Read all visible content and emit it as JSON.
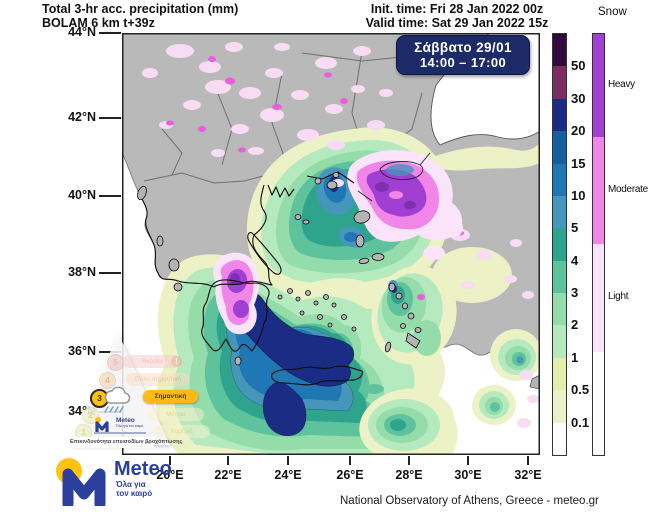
{
  "header": {
    "title_line1": "Total 3-hr acc. precipitation (mm)",
    "title_line2": "BOLAM 6 km t+39z",
    "init_time": "Init. time: Fri 28 Jan 2022 00z",
    "valid_time": "Valid time: Sat 29 Jan 2022 15z"
  },
  "datebox": {
    "line1": "Σάββατο 29/01",
    "line2": "14:00 – 17:00",
    "bg": "#1d2a68"
  },
  "map": {
    "lat_ticks": [
      "44°N",
      "42°N",
      "40°N",
      "38°N",
      "36°N",
      "34°N"
    ],
    "lon_ticks": [
      "20°E",
      "22°E",
      "24°E",
      "26°E",
      "28°E",
      "30°E",
      "32°E"
    ]
  },
  "precip_scale": {
    "unit": "mm",
    "labels": [
      "50",
      "30",
      "20",
      "15",
      "10",
      "5",
      "4",
      "3",
      "2",
      "1",
      "0.5",
      "0.1"
    ],
    "colors": [
      "#31093f",
      "#7c2d5f",
      "#1b2c85",
      "#155f9e",
      "#1f77b4",
      "#4596ba",
      "#2fa48c",
      "#5ec39c",
      "#95dcab",
      "#b5e9be",
      "#e3eeae",
      "#ecf1c9",
      "#ffffff"
    ]
  },
  "snow_scale": {
    "title": "Snow",
    "classes": [
      {
        "label": "Heavy",
        "color": "#a03fd2"
      },
      {
        "label": "Moderate",
        "color": "#ef86e8"
      },
      {
        "label": "Light",
        "color": "#fbe4f9"
      },
      {
        "label": "",
        "color": "#ffffff"
      }
    ]
  },
  "risk_pyramid": {
    "title": "Επικινδυνότητα επεισοδίων βροχόπτωσης",
    "badge": "!",
    "levels": [
      {
        "num": "5",
        "label": "Ακραία",
        "active": false
      },
      {
        "num": "4",
        "label": "Πολύ σημαντική",
        "active": false
      },
      {
        "num": "3",
        "label": "Σημαντική",
        "active": true
      },
      {
        "num": "2",
        "label": "Μέτρια",
        "active": false
      },
      {
        "num": "1",
        "label": "Χαμηλή",
        "active": false
      }
    ],
    "logo_text": "Meteo",
    "logo_tagline": "Όλα για τον καιρό"
  },
  "branding": {
    "logo_text": "Meteo",
    "tagline_line1": "Όλα για",
    "tagline_line2": "τον καιρό",
    "blue": "#2c3e9e",
    "yellow": "#ffc20e"
  },
  "footer": {
    "credit": "National Observatory of Athens, Greece - meteo.gr"
  }
}
